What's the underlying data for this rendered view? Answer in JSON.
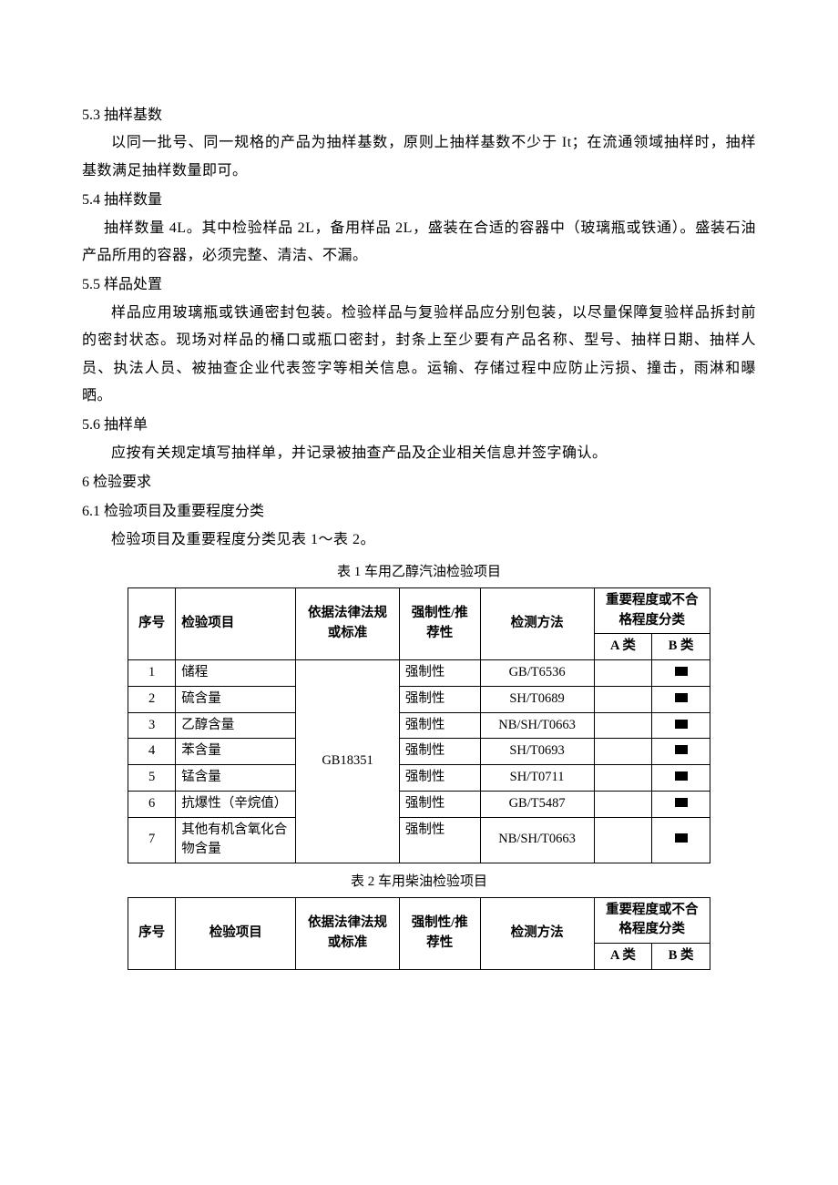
{
  "sections": {
    "s53": {
      "heading": "5.3 抽样基数",
      "para1": "以同一批号、同一规格的产品为抽样基数，原则上抽样基数不少于 It；在流通领域抽样时，抽样基数满足抽样数量即可。"
    },
    "s54": {
      "heading": "5.4 抽样数量",
      "para1": "抽样数量 4L。其中检验样品 2L，备用样品 2L，盛装在合适的容器中（玻璃瓶或铁通）。盛装石油产品所用的容器，必须完整、清洁、不漏。"
    },
    "s55": {
      "heading": "5.5 样品处置",
      "para1": "样品应用玻璃瓶或铁通密封包装。检验样品与复验样品应分别包装，以尽量保障复验样品拆封前的密封状态。现场对样品的桶口或瓶口密封，封条上至少要有产品名称、型号、抽样日期、抽样人员、执法人员、被抽查企业代表签字等相关信息。运输、存储过程中应防止污损、撞击，雨淋和曝晒。"
    },
    "s56": {
      "heading": "5.6 抽样单",
      "para1": "应按有关规定填写抽样单，并记录被抽查产品及企业相关信息并签字确认。"
    },
    "s6": {
      "heading": "6 检验要求"
    },
    "s61": {
      "heading": "6.1 检验项目及重要程度分类",
      "para1": "检验项目及重要程度分类见表 1～表 2。"
    }
  },
  "table1": {
    "caption": "表 1 车用乙醇汽油检验项目",
    "headers": {
      "seq": "序号",
      "item": "检验项目",
      "basis": "依据法律法规或标准",
      "mand": "强制性/推荐性",
      "method": "检测方法",
      "category": "重要程度或不合格程度分类",
      "catA": "A 类",
      "catB": "B 类"
    },
    "basis_value": "GB18351",
    "rows": [
      {
        "seq": "1",
        "item": "储程",
        "mand": "强制性",
        "method": "GB/T6536",
        "b": true
      },
      {
        "seq": "2",
        "item": "硫含量",
        "mand": "强制性",
        "method": "SH/T0689",
        "b": true
      },
      {
        "seq": "3",
        "item": "乙醇含量",
        "mand": "强制性",
        "method": "NB/SH/T0663",
        "b": true
      },
      {
        "seq": "4",
        "item": "苯含量",
        "mand": "强制性",
        "method": "SH/T0693",
        "b": true
      },
      {
        "seq": "5",
        "item": "锰含量",
        "mand": "强制性",
        "method": "SH/T0711",
        "b": true
      },
      {
        "seq": "6",
        "item": "抗爆性（辛烷值）",
        "mand": "强制性",
        "method": "GB/T5487",
        "b": true
      },
      {
        "seq": "7",
        "item": "其他有机含氧化合物含量",
        "mand": "强制性",
        "method": "NB/SH/T0663",
        "b": true
      }
    ]
  },
  "table2": {
    "caption": "表 2 车用柴油检验项目",
    "headers": {
      "seq": "序号",
      "item": "检验项目",
      "basis": "依据法律法规或标准",
      "mand": "强制性/推荐性",
      "method": "检测方法",
      "category": "重要程度或不合格程度分类",
      "catA": "A 类",
      "catB": "B 类"
    }
  }
}
